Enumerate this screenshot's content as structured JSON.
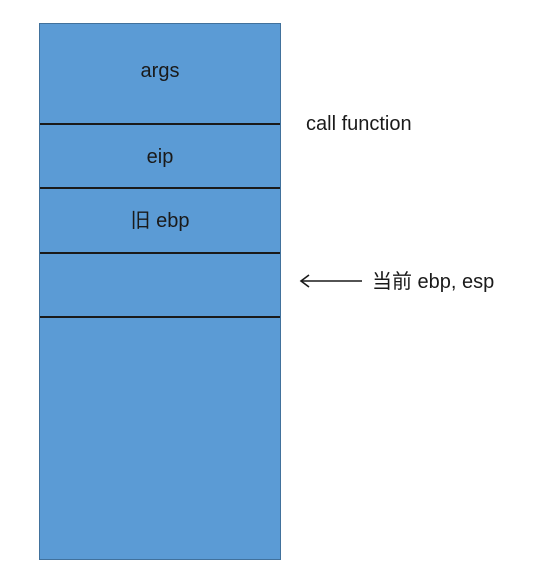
{
  "stack": {
    "cells": [
      {
        "label": "args"
      },
      {
        "label": "eip"
      },
      {
        "label": "旧 ebp"
      },
      {
        "label": ""
      },
      {
        "label": ""
      }
    ]
  },
  "annotations": {
    "call": "call function",
    "current": "当前 ebp, esp"
  },
  "colors": {
    "stack_fill": "#5b9bd5",
    "divider": "#1a1a1a"
  },
  "icons": {
    "pointer": "left-arrow-icon"
  }
}
